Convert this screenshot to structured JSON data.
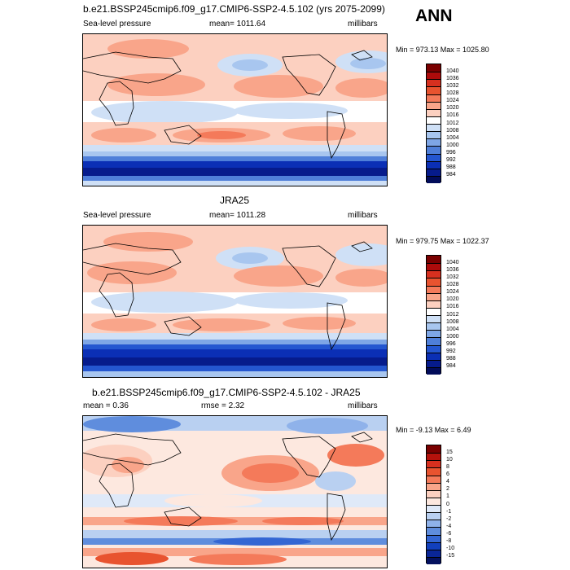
{
  "season_label": "ANN",
  "panels": [
    {
      "id": "model",
      "title": "b.e21.BSSP245cmip6.f09_g17.CMIP6-SSP2-4.5.102 (yrs 2075-2099)",
      "left_label": "Sea-level pressure",
      "center_label": "mean= 1011.64",
      "right_label": "millibars",
      "minmax": "Min = 973.13 Max = 1025.80",
      "colorbar": {
        "labels": [
          "1040",
          "1036",
          "1032",
          "1028",
          "1024",
          "1020",
          "1016",
          "1012",
          "1008",
          "1004",
          "1000",
          "996",
          "992",
          "988",
          "984"
        ],
        "colors": [
          "#7a0000",
          "#ad0b0b",
          "#d7301f",
          "#e8532f",
          "#f47a5a",
          "#f9a58a",
          "#fcd0c0",
          "#ffffff",
          "#cfe0f6",
          "#a8c6ef",
          "#7ea6e6",
          "#4f7fd9",
          "#2456d0",
          "#0b2fb5",
          "#061b8c",
          "#020c5a"
        ]
      }
    },
    {
      "id": "obs",
      "title": "JRA25",
      "left_label": "Sea-level pressure",
      "center_label": "mean= 1011.28",
      "right_label": "millibars",
      "minmax": "Min = 979.75 Max = 1022.37",
      "colorbar": {
        "labels": [
          "1040",
          "1036",
          "1032",
          "1028",
          "1024",
          "1020",
          "1016",
          "1012",
          "1008",
          "1004",
          "1000",
          "996",
          "992",
          "988",
          "984"
        ],
        "colors": [
          "#7a0000",
          "#ad0b0b",
          "#d7301f",
          "#e8532f",
          "#f47a5a",
          "#f9a58a",
          "#fcd0c0",
          "#ffffff",
          "#cfe0f6",
          "#a8c6ef",
          "#7ea6e6",
          "#4f7fd9",
          "#2456d0",
          "#0b2fb5",
          "#061b8c",
          "#020c5a"
        ]
      }
    },
    {
      "id": "diff",
      "title": "b.e21.BSSP245cmip6.f09_g17.CMIP6-SSP2-4.5.102 - JRA25",
      "left_label": "mean =   0.36",
      "center_label": "rmse =   2.32",
      "right_label": "millibars",
      "minmax": "Min =  -9.13 Max =   6.49",
      "colorbar": {
        "labels": [
          "15",
          "10",
          "8",
          "6",
          "4",
          "2",
          "1",
          "0",
          "-1",
          "-2",
          "-4",
          "-6",
          "-8",
          "-10",
          "-15"
        ],
        "colors": [
          "#7a0000",
          "#b5120c",
          "#d7301f",
          "#e8532f",
          "#f47a5a",
          "#f9a58a",
          "#fcd0c0",
          "#fde8df",
          "#dfe9f8",
          "#b9d0f1",
          "#8fb2ea",
          "#5f8ddd",
          "#3466d3",
          "#1240bd",
          "#0a2697",
          "#04115f"
        ]
      }
    }
  ]
}
